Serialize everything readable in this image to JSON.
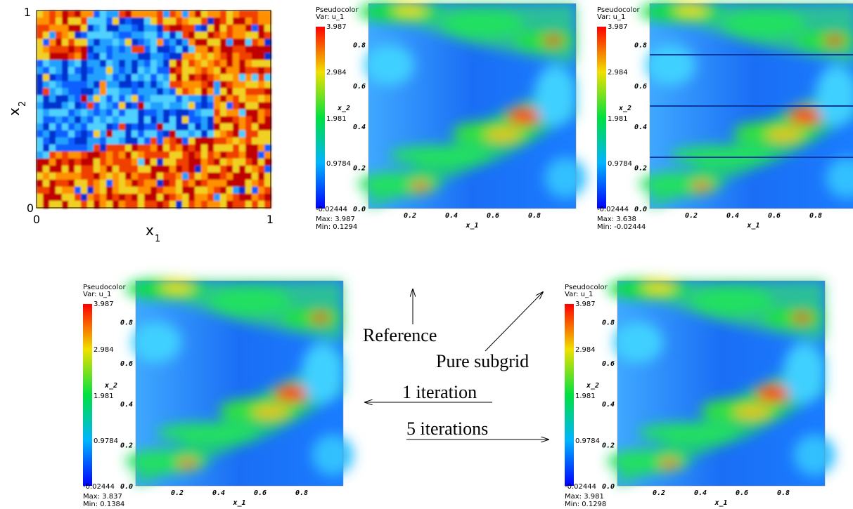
{
  "field": {
    "x_label": "x",
    "x_label_sub": "1",
    "y_label": "x",
    "y_label_sub": "2",
    "x_ticks": [
      "0",
      "1"
    ],
    "y_ticks": [
      "0",
      "1"
    ]
  },
  "plots": [
    {
      "legend_title": "Pseudocolor",
      "variable": "Var: u_1",
      "colorbar_labels": [
        "3.987",
        "2.984",
        "1.981",
        "0.9784",
        "-0.02444"
      ],
      "max": "Max: 3.987",
      "min": "Min: 0.1294",
      "y_label": "x_2",
      "x_label": "x_1",
      "y_ticks": [
        "0.8",
        "0.6",
        "0.4",
        "0.2",
        "0.0"
      ],
      "x_ticks": [
        "0.2",
        "0.4",
        "0.6",
        "0.8"
      ]
    },
    {
      "legend_title": "Pseudocolor",
      "variable": "Var: u_1",
      "colorbar_labels": [
        "3.987",
        "2.984",
        "1.981",
        "0.9784",
        "-0.02444"
      ],
      "max": "Max: 3.638",
      "min": "Min: -0.02444",
      "y_label": "x_2",
      "x_label": "x_1",
      "y_ticks": [
        "0.8",
        "0.6",
        "0.4",
        "0.2",
        "0.0"
      ],
      "x_ticks": [
        "0.2",
        "0.4",
        "0.6",
        "0.8"
      ]
    },
    {
      "legend_title": "Pseudocolor",
      "variable": "Var: u_1",
      "colorbar_labels": [
        "3.987",
        "2.984",
        "1.981",
        "0.9784",
        "-0.02444"
      ],
      "max": "Max: 3.837",
      "min": "Min: 0.1384",
      "y_label": "x_2",
      "x_label": "x_1",
      "y_ticks": [
        "0.8",
        "0.6",
        "0.4",
        "0.2",
        "0.0"
      ],
      "x_ticks": [
        "0.2",
        "0.4",
        "0.6",
        "0.8"
      ]
    },
    {
      "legend_title": "Pseudocolor",
      "variable": "Var: u_1",
      "colorbar_labels": [
        "3.987",
        "2.984",
        "1.981",
        "0.9784",
        "-0.02444"
      ],
      "max": "Max: 3.981",
      "min": "Min: 0.1298",
      "y_label": "x_2",
      "x_label": "x_1",
      "y_ticks": [
        "0.8",
        "0.6",
        "0.4",
        "0.2",
        "0.0"
      ],
      "x_ticks": [
        "0.2",
        "0.4",
        "0.6",
        "0.8"
      ]
    }
  ],
  "annotations": [
    "Reference",
    "Pure subgrid",
    "1 iteration",
    "5 iterations"
  ]
}
